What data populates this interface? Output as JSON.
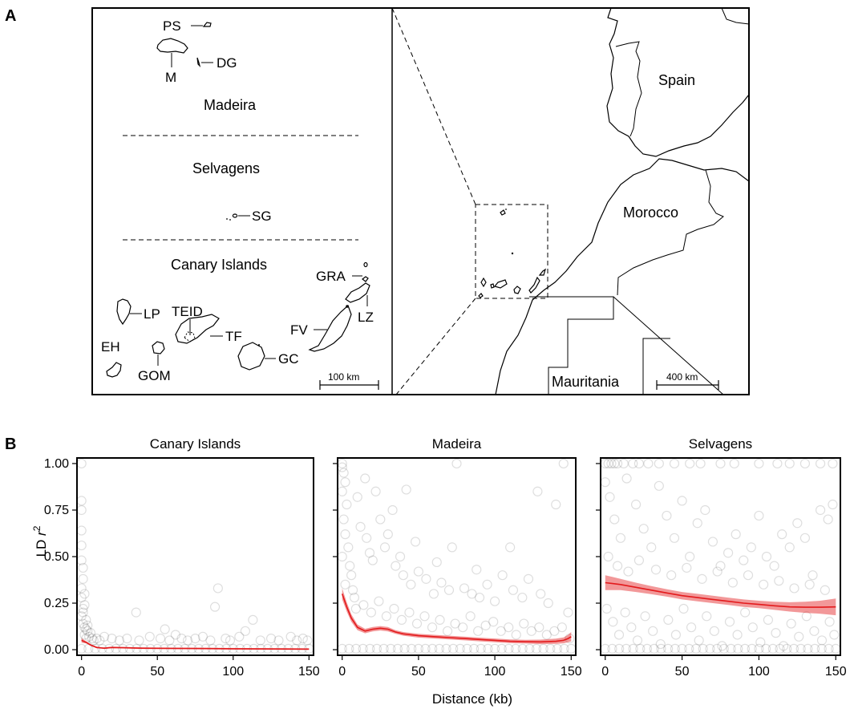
{
  "panels": {
    "a_label": "A",
    "b_label": "B"
  },
  "map": {
    "islands": {
      "ps": "PS",
      "m": "M",
      "dg": "DG",
      "sg": "SG",
      "lp": "LP",
      "teid": "TEID",
      "tf": "TF",
      "eh": "EH",
      "gom": "GOM",
      "gc": "GC",
      "fv": "FV",
      "lz": "LZ",
      "gra": "GRA"
    },
    "regions": {
      "madeira": "Madeira",
      "selvagens": "Selvagens",
      "canary": "Canary Islands"
    },
    "countries": {
      "spain": "Spain",
      "morocco": "Morocco",
      "mauritania": "Mauritania"
    },
    "scales": {
      "inset": "100 km",
      "overview": "400 km"
    }
  },
  "chart_data": {
    "type": "scatter",
    "xlabel": "Distance (kb)",
    "ylabel_main": "LD ",
    "ylabel_italic": "r",
    "ylabel_sup": "2",
    "xlim": [
      -3,
      153
    ],
    "ylim": [
      -0.03,
      1.03
    ],
    "xticks": [
      0,
      50,
      100,
      150
    ],
    "yticks": [
      0.0,
      0.25,
      0.5,
      0.75,
      1.0
    ],
    "ytick_labels": [
      "0.00",
      "0.25",
      "0.50",
      "0.75",
      "1.00"
    ],
    "point_color": "#000000",
    "smooth_color": "#e31a1c",
    "panels": [
      {
        "name": "Canary Islands",
        "smooth": {
          "x": [
            0,
            3,
            6,
            10,
            15,
            20,
            30,
            40,
            60,
            80,
            100,
            120,
            150
          ],
          "y": [
            0.05,
            0.04,
            0.025,
            0.012,
            0.008,
            0.012,
            0.01,
            0.008,
            0.007,
            0.006,
            0.005,
            0.004,
            0.003
          ],
          "ci": [
            0.012,
            0.006,
            0.005,
            0.004,
            0.004,
            0.004,
            0.004,
            0.004,
            0.004,
            0.004,
            0.004,
            0.004,
            0.004
          ]
        },
        "points": [
          [
            0,
            1.0
          ],
          [
            0,
            0.8
          ],
          [
            0,
            0.75
          ],
          [
            0,
            0.64
          ],
          [
            0,
            0.56
          ],
          [
            0,
            0.48
          ],
          [
            1,
            0.44
          ],
          [
            1,
            0.38
          ],
          [
            0,
            0.33
          ],
          [
            0,
            0.28
          ],
          [
            2,
            0.24
          ],
          [
            1,
            0.2
          ],
          [
            0,
            0.18
          ],
          [
            3,
            0.16
          ],
          [
            1,
            0.14
          ],
          [
            2,
            0.12
          ],
          [
            4,
            0.1
          ],
          [
            2,
            0.08
          ],
          [
            5,
            0.07
          ],
          [
            3,
            0.06
          ],
          [
            6,
            0.09
          ],
          [
            8,
            0.05
          ],
          [
            1,
            0.22
          ],
          [
            2,
            0.3
          ],
          [
            4,
            0.13
          ],
          [
            3,
            0.11
          ],
          [
            7,
            0.06
          ],
          [
            36,
            0.2
          ],
          [
            88,
            0.23
          ],
          [
            90,
            0.33
          ],
          [
            113,
            0.16
          ],
          [
            10,
            0.06
          ],
          [
            12,
            0.05
          ],
          [
            15,
            0.07
          ],
          [
            20,
            0.06
          ],
          [
            25,
            0.05
          ],
          [
            30,
            0.06
          ],
          [
            38,
            0.05
          ],
          [
            45,
            0.07
          ],
          [
            52,
            0.06
          ],
          [
            55,
            0.11
          ],
          [
            58,
            0.05
          ],
          [
            62,
            0.08
          ],
          [
            66,
            0.06
          ],
          [
            70,
            0.05
          ],
          [
            75,
            0.06
          ],
          [
            80,
            0.07
          ],
          [
            85,
            0.05
          ],
          [
            95,
            0.06
          ],
          [
            98,
            0.05
          ],
          [
            104,
            0.07
          ],
          [
            108,
            0.1
          ],
          [
            118,
            0.05
          ],
          [
            125,
            0.06
          ],
          [
            130,
            0.05
          ],
          [
            138,
            0.07
          ],
          [
            142,
            0.05
          ],
          [
            146,
            0.06
          ],
          [
            149,
            0.05
          ]
        ]
      },
      {
        "name": "Madeira",
        "smooth": {
          "x": [
            0,
            3,
            6,
            10,
            15,
            20,
            25,
            30,
            35,
            40,
            50,
            60,
            70,
            80,
            90,
            100,
            110,
            120,
            130,
            140,
            145,
            148,
            150
          ],
          "y": [
            0.3,
            0.23,
            0.17,
            0.12,
            0.1,
            0.11,
            0.115,
            0.11,
            0.095,
            0.085,
            0.075,
            0.07,
            0.065,
            0.06,
            0.055,
            0.05,
            0.045,
            0.043,
            0.042,
            0.045,
            0.05,
            0.06,
            0.07
          ],
          "ci": [
            0.03,
            0.025,
            0.02,
            0.015,
            0.012,
            0.012,
            0.012,
            0.012,
            0.01,
            0.01,
            0.01,
            0.01,
            0.01,
            0.01,
            0.01,
            0.01,
            0.01,
            0.01,
            0.012,
            0.014,
            0.016,
            0.02,
            0.025
          ]
        },
        "points": [
          [
            0,
            1.0
          ],
          [
            0,
            0.98
          ],
          [
            1,
            0.95
          ],
          [
            2,
            0.9
          ],
          [
            0,
            0.85
          ],
          [
            3,
            0.78
          ],
          [
            1,
            0.7
          ],
          [
            2,
            0.62
          ],
          [
            4,
            0.55
          ],
          [
            0,
            0.5
          ],
          [
            5,
            0.45
          ],
          [
            6,
            0.4
          ],
          [
            2,
            0.35
          ],
          [
            7,
            0.32
          ],
          [
            8,
            0.28
          ],
          [
            10,
            0.82
          ],
          [
            12,
            0.66
          ],
          [
            16,
            0.6
          ],
          [
            18,
            0.52
          ],
          [
            20,
            0.48
          ],
          [
            15,
            0.92
          ],
          [
            22,
            0.85
          ],
          [
            25,
            0.7
          ],
          [
            28,
            0.55
          ],
          [
            30,
            0.62
          ],
          [
            33,
            0.75
          ],
          [
            35,
            0.45
          ],
          [
            38,
            0.5
          ],
          [
            40,
            0.4
          ],
          [
            42,
            0.86
          ],
          [
            45,
            0.35
          ],
          [
            48,
            0.58
          ],
          [
            50,
            0.42
          ],
          [
            55,
            0.38
          ],
          [
            60,
            0.3
          ],
          [
            62,
            0.47
          ],
          [
            65,
            0.36
          ],
          [
            70,
            0.32
          ],
          [
            72,
            0.55
          ],
          [
            75,
            1.0
          ],
          [
            80,
            0.33
          ],
          [
            85,
            0.3
          ],
          [
            88,
            0.43
          ],
          [
            90,
            0.28
          ],
          [
            95,
            0.35
          ],
          [
            100,
            0.26
          ],
          [
            105,
            0.4
          ],
          [
            110,
            0.55
          ],
          [
            112,
            0.32
          ],
          [
            118,
            0.28
          ],
          [
            122,
            0.38
          ],
          [
            128,
            0.85
          ],
          [
            130,
            0.3
          ],
          [
            135,
            0.25
          ],
          [
            140,
            0.78
          ],
          [
            145,
            1.0
          ],
          [
            148,
            0.2
          ],
          [
            9,
            0.22
          ],
          [
            14,
            0.24
          ],
          [
            19,
            0.2
          ],
          [
            24,
            0.26
          ],
          [
            29,
            0.18
          ],
          [
            34,
            0.22
          ],
          [
            39,
            0.16
          ],
          [
            44,
            0.2
          ],
          [
            49,
            0.14
          ],
          [
            54,
            0.18
          ],
          [
            59,
            0.12
          ],
          [
            64,
            0.16
          ],
          [
            69,
            0.1
          ],
          [
            74,
            0.14
          ],
          [
            79,
            0.12
          ],
          [
            84,
            0.18
          ],
          [
            89,
            0.1
          ],
          [
            94,
            0.13
          ],
          [
            99,
            0.15
          ],
          [
            104,
            0.1
          ],
          [
            109,
            0.12
          ],
          [
            114,
            0.08
          ],
          [
            119,
            0.14
          ],
          [
            124,
            0.1
          ],
          [
            129,
            0.12
          ],
          [
            134,
            0.08
          ],
          [
            139,
            0.1
          ],
          [
            144,
            0.12
          ],
          [
            149,
            0.06
          ]
        ]
      },
      {
        "name": "Selvagens",
        "smooth": {
          "x": [
            0,
            10,
            20,
            30,
            40,
            50,
            60,
            70,
            80,
            90,
            100,
            110,
            120,
            130,
            140,
            150
          ],
          "y": [
            0.36,
            0.35,
            0.335,
            0.32,
            0.305,
            0.29,
            0.28,
            0.27,
            0.26,
            0.25,
            0.243,
            0.236,
            0.23,
            0.228,
            0.228,
            0.23
          ],
          "ci": [
            0.04,
            0.03,
            0.025,
            0.022,
            0.02,
            0.02,
            0.02,
            0.02,
            0.02,
            0.02,
            0.02,
            0.022,
            0.025,
            0.03,
            0.035,
            0.045
          ]
        },
        "points": [
          [
            0,
            1.0
          ],
          [
            2,
            1.0
          ],
          [
            4,
            1.0
          ],
          [
            6,
            1.0
          ],
          [
            8,
            1.0
          ],
          [
            12,
            1.0
          ],
          [
            18,
            1.0
          ],
          [
            22,
            1.0
          ],
          [
            28,
            1.0
          ],
          [
            35,
            1.0
          ],
          [
            45,
            1.0
          ],
          [
            55,
            1.0
          ],
          [
            62,
            1.0
          ],
          [
            75,
            1.0
          ],
          [
            84,
            1.0
          ],
          [
            100,
            1.0
          ],
          [
            112,
            1.0
          ],
          [
            120,
            1.0
          ],
          [
            130,
            1.0
          ],
          [
            140,
            1.0
          ],
          [
            148,
            1.0
          ],
          [
            0,
            0.9
          ],
          [
            3,
            0.82
          ],
          [
            6,
            0.7
          ],
          [
            10,
            0.6
          ],
          [
            14,
            0.92
          ],
          [
            20,
            0.78
          ],
          [
            25,
            0.65
          ],
          [
            30,
            0.55
          ],
          [
            35,
            0.88
          ],
          [
            40,
            0.72
          ],
          [
            45,
            0.6
          ],
          [
            50,
            0.8
          ],
          [
            55,
            0.5
          ],
          [
            60,
            0.68
          ],
          [
            65,
            0.75
          ],
          [
            70,
            0.58
          ],
          [
            75,
            0.45
          ],
          [
            80,
            0.52
          ],
          [
            85,
            0.62
          ],
          [
            90,
            0.48
          ],
          [
            95,
            0.55
          ],
          [
            100,
            0.72
          ],
          [
            105,
            0.5
          ],
          [
            110,
            0.45
          ],
          [
            115,
            0.62
          ],
          [
            120,
            0.55
          ],
          [
            125,
            0.68
          ],
          [
            130,
            0.6
          ],
          [
            135,
            0.4
          ],
          [
            140,
            0.75
          ],
          [
            145,
            0.7
          ],
          [
            148,
            0.78
          ],
          [
            2,
            0.5
          ],
          [
            8,
            0.45
          ],
          [
            15,
            0.42
          ],
          [
            22,
            0.48
          ],
          [
            33,
            0.43
          ],
          [
            43,
            0.4
          ],
          [
            53,
            0.44
          ],
          [
            63,
            0.38
          ],
          [
            73,
            0.42
          ],
          [
            83,
            0.36
          ],
          [
            93,
            0.4
          ],
          [
            103,
            0.35
          ],
          [
            113,
            0.37
          ],
          [
            123,
            0.33
          ],
          [
            133,
            0.35
          ],
          [
            143,
            0.32
          ],
          [
            1,
            0.22
          ],
          [
            5,
            0.15
          ],
          [
            9,
            0.08
          ],
          [
            13,
            0.2
          ],
          [
            17,
            0.12
          ],
          [
            21,
            0.05
          ],
          [
            26,
            0.18
          ],
          [
            31,
            0.1
          ],
          [
            36,
            0.03
          ],
          [
            41,
            0.16
          ],
          [
            46,
            0.08
          ],
          [
            51,
            0.22
          ],
          [
            56,
            0.12
          ],
          [
            61,
            0.05
          ],
          [
            66,
            0.18
          ],
          [
            71,
            0.1
          ],
          [
            76,
            0.02
          ],
          [
            81,
            0.15
          ],
          [
            86,
            0.08
          ],
          [
            91,
            0.2
          ],
          [
            96,
            0.12
          ],
          [
            101,
            0.04
          ],
          [
            106,
            0.16
          ],
          [
            111,
            0.09
          ],
          [
            116,
            0.02
          ],
          [
            121,
            0.14
          ],
          [
            126,
            0.07
          ],
          [
            131,
            0.18
          ],
          [
            136,
            0.1
          ],
          [
            141,
            0.05
          ],
          [
            146,
            0.15
          ],
          [
            149,
            0.08
          ]
        ]
      }
    ]
  }
}
